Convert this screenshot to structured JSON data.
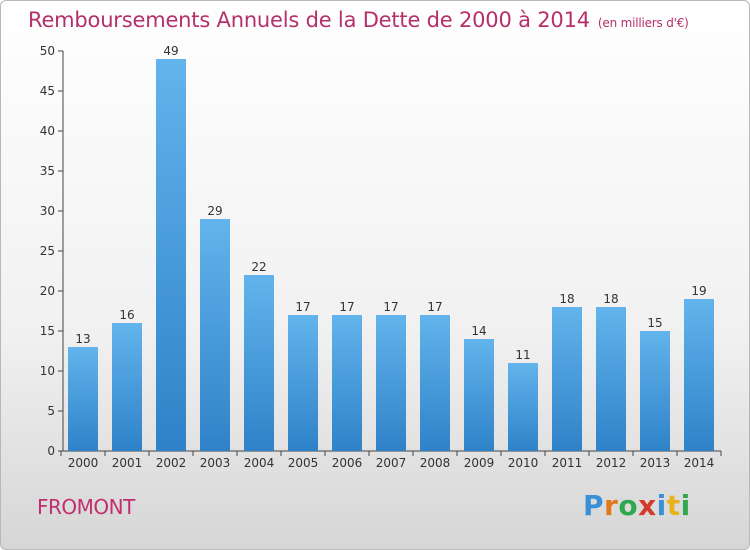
{
  "chart_data": {
    "type": "bar",
    "title": "Remboursements Annuels de la Dette de 2000 à 2014",
    "subtitle": "(en milliers d'€)",
    "categories": [
      "2000",
      "2001",
      "2002",
      "2003",
      "2004",
      "2005",
      "2006",
      "2007",
      "2008",
      "2009",
      "2010",
      "2011",
      "2012",
      "2013",
      "2014"
    ],
    "values": [
      13,
      16,
      49,
      29,
      22,
      17,
      17,
      17,
      17,
      14,
      11,
      18,
      18,
      15,
      19
    ],
    "ylim": [
      0,
      50
    ],
    "yticks": [
      0,
      5,
      10,
      15,
      20,
      25,
      30,
      35,
      40,
      45,
      50
    ],
    "grid": false,
    "legend": "none",
    "bar_color_light": "#62b4ec",
    "bar_color_dark": "#2f82c8"
  },
  "footer": {
    "commune": "FROMONT",
    "logo_letters": [
      "P",
      "r",
      "o",
      "x",
      "i",
      "t",
      "i"
    ],
    "logo_colors": [
      "#3b8fd6",
      "#e0791a",
      "#2fa84f",
      "#d23a2a",
      "#3b8fd6",
      "#e8b31a",
      "#2fa84f"
    ]
  }
}
